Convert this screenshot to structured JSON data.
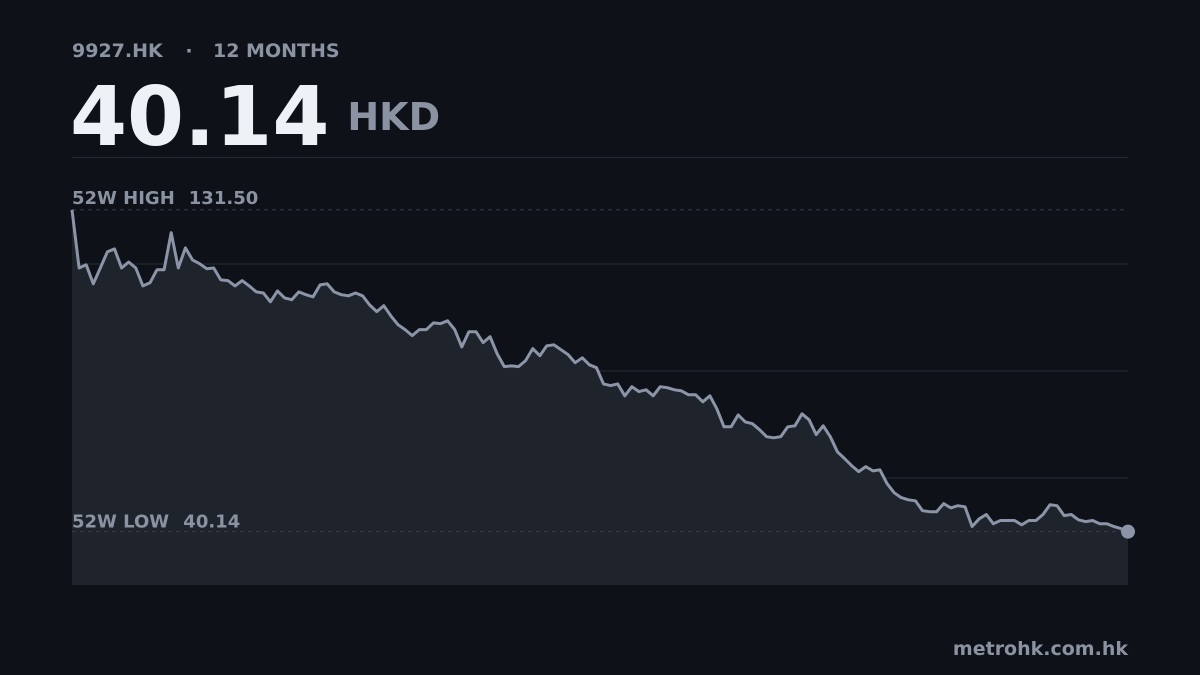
{
  "chart_data": {
    "type": "line",
    "ticker": "9927.HK",
    "separator": "·",
    "period": "12 MONTHS",
    "price": 40.14,
    "currency": "HKD",
    "high_label": "52W HIGH",
    "high_value": 131.5,
    "high_value_label": "131.50",
    "low_label": "52W LOW",
    "low_value": 40.14,
    "source": "metrohk.com.hk",
    "color": "#8b95a7",
    "area_color": "#1f232b",
    "ylim": [
      25,
      146.5
    ],
    "values": [
      131.5,
      115.0,
      115.9,
      110.5,
      115.0,
      119.6,
      120.4,
      115.0,
      116.7,
      115.0,
      109.9,
      110.8,
      114.5,
      114.5,
      125.0,
      115.0,
      120.7,
      117.3,
      116.2,
      114.8,
      115.0,
      111.6,
      111.4,
      109.9,
      111.4,
      109.9,
      108.2,
      107.9,
      105.4,
      108.5,
      106.5,
      106.0,
      108.2,
      107.4,
      106.8,
      110.2,
      110.5,
      108.2,
      107.4,
      107.1,
      107.9,
      107.1,
      104.5,
      102.6,
      104.3,
      101.4,
      98.9,
      97.5,
      95.8,
      97.5,
      97.5,
      99.4,
      99.2,
      100.0,
      97.5,
      92.6,
      96.9,
      96.9,
      93.8,
      95.5,
      90.6,
      87.0,
      87.2,
      87.0,
      88.7,
      92.1,
      90.1,
      92.9,
      93.2,
      91.8,
      90.4,
      88.1,
      89.5,
      87.5,
      86.7,
      82.1,
      81.6,
      82.1,
      78.7,
      81.3,
      79.9,
      80.4,
      78.7,
      81.3,
      81.0,
      80.4,
      80.1,
      79.0,
      79.0,
      77.0,
      78.7,
      75.0,
      69.9,
      69.9,
      73.3,
      71.3,
      70.8,
      69.1,
      67.1,
      66.8,
      67.1,
      69.9,
      70.2,
      73.6,
      71.9,
      67.7,
      70.2,
      67.1,
      62.8,
      60.9,
      58.9,
      57.2,
      58.6,
      57.4,
      57.7,
      53.8,
      51.2,
      49.8,
      49.2,
      48.9,
      46.1,
      45.8,
      45.8,
      48.1,
      46.9,
      47.5,
      47.2,
      41.6,
      43.8,
      45.0,
      42.4,
      43.3,
      43.3,
      43.3,
      42.1,
      43.3,
      43.3,
      45.0,
      47.8,
      47.5,
      44.7,
      45.0,
      43.5,
      43.0,
      43.3,
      42.4,
      42.4,
      41.6,
      41.0,
      40.14
    ]
  }
}
